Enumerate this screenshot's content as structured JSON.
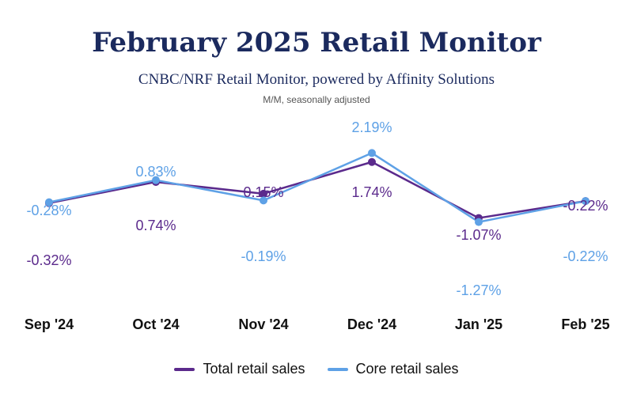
{
  "chart_data": {
    "type": "line",
    "title": "February 2025 Retail Monitor",
    "subtitle": "CNBC/NRF Retail Monitor, powered by Affinity Solutions",
    "note": "M/M, seasonally adjusted",
    "categories": [
      "Sep '24",
      "Oct '24",
      "Nov '24",
      "Dec '24",
      "Jan '25",
      "Feb '25"
    ],
    "series": [
      {
        "name": "Total retail sales",
        "color": "#5b2a8c",
        "values": [
          -0.32,
          0.74,
          0.15,
          1.74,
          -1.07,
          -0.22
        ],
        "labels": [
          "-0.32%",
          "0.74%",
          "0.15%",
          "1.74%",
          "-1.07%",
          "-0.22%"
        ]
      },
      {
        "name": "Core retail sales",
        "color": "#5ea1e6",
        "values": [
          -0.28,
          0.83,
          -0.19,
          2.19,
          -1.27,
          -0.22
        ],
        "labels": [
          "-0.28%",
          "0.83%",
          "-0.19%",
          "2.19%",
          "-1.27%",
          "-0.22%"
        ]
      }
    ],
    "legend_position": "bottom",
    "grid": false
  }
}
